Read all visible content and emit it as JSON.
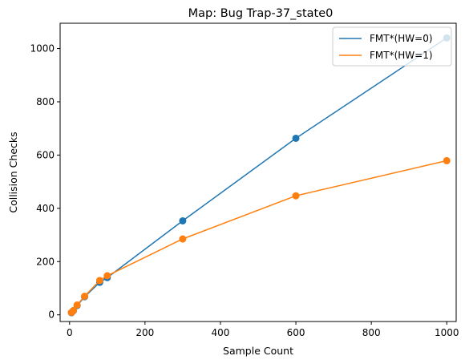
{
  "chart_data": {
    "type": "line",
    "title": "Map: Bug Trap-37_state0",
    "xlabel": "Sample Count",
    "ylabel": "Collision Checks",
    "xlim": [
      -25,
      1025
    ],
    "ylim": [
      -25,
      1095
    ],
    "xticks": [
      0,
      200,
      400,
      600,
      800,
      1000
    ],
    "yticks": [
      0,
      200,
      400,
      600,
      800,
      1000
    ],
    "grid": false,
    "legend_position": "top-right",
    "series": [
      {
        "name": "FMT*(HW=0)",
        "color": "#1f77b4",
        "x": [
          5,
          10,
          20,
          40,
          80,
          100,
          300,
          600,
          1000
        ],
        "y": [
          8,
          15,
          35,
          68,
          122,
          140,
          353,
          663,
          1040
        ]
      },
      {
        "name": "FMT*(HW=1)",
        "color": "#ff7f0e",
        "x": [
          5,
          10,
          20,
          40,
          80,
          100,
          300,
          600,
          1000
        ],
        "y": [
          9,
          16,
          37,
          70,
          129,
          147,
          285,
          447,
          579
        ]
      }
    ]
  }
}
